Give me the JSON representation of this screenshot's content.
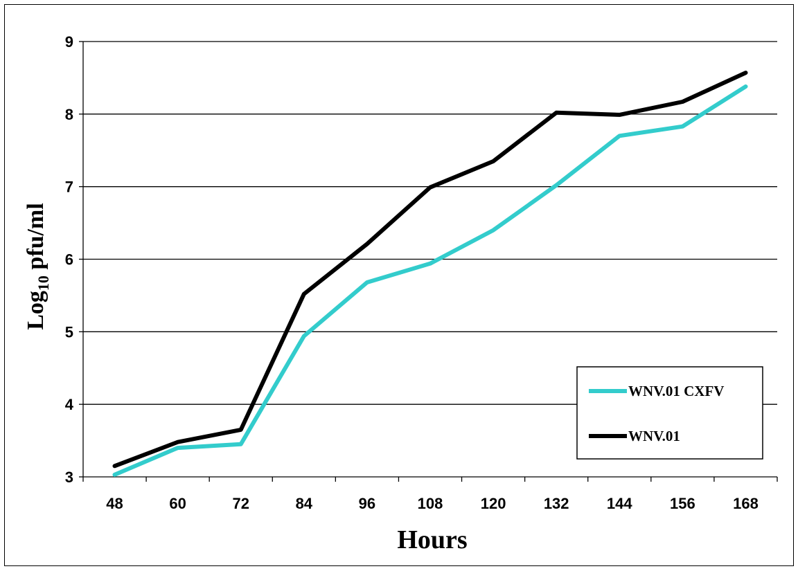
{
  "chart_data": {
    "type": "line",
    "title": "",
    "xlabel": "Hours",
    "ylabel_main": "Log",
    "ylabel_sub": "10",
    "ylabel_rest": " pfu/ml",
    "categories": [
      "48",
      "60",
      "72",
      "84",
      "96",
      "108",
      "120",
      "132",
      "144",
      "156",
      "168"
    ],
    "ylim": [
      3,
      9
    ],
    "yticks": [
      "3",
      "4",
      "5",
      "6",
      "7",
      "8",
      "9"
    ],
    "grid": "horizontal",
    "legend_position": "bottom-right",
    "series": [
      {
        "name": "WNV.01 CXFV",
        "color": "#33cccc",
        "values": [
          3.03,
          3.4,
          3.45,
          4.94,
          5.68,
          5.94,
          6.4,
          7.02,
          7.7,
          7.83,
          8.38
        ]
      },
      {
        "name": "WNV.01",
        "color": "#000000",
        "values": [
          3.15,
          3.48,
          3.65,
          5.52,
          6.21,
          6.99,
          7.35,
          8.02,
          7.99,
          8.17,
          8.57
        ]
      }
    ]
  }
}
